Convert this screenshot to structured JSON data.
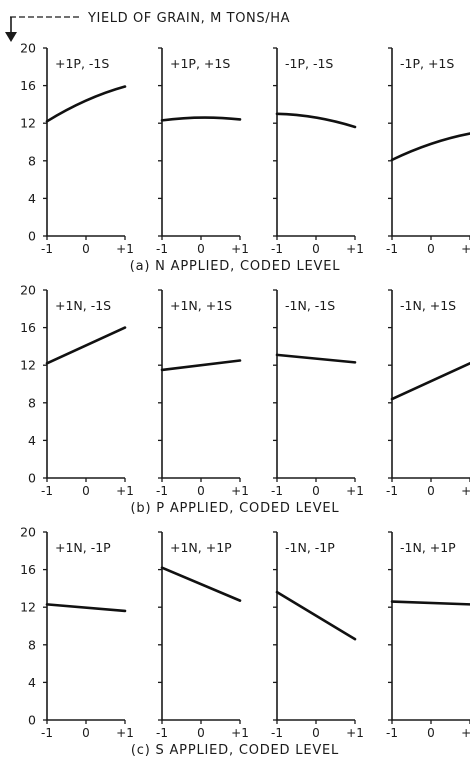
{
  "figure": {
    "ylabel": "YIELD OF GRAIN, M TONS/HA"
  },
  "chart_data": [
    {
      "type": "line",
      "xlabel": "(a) N APPLIED, CODED LEVEL",
      "ylabel": "YIELD OF GRAIN, M TONS/HA",
      "ylim": [
        0,
        20
      ],
      "y_ticks": [
        "0",
        "4",
        "8",
        "12",
        "16",
        "20"
      ],
      "x_ticks": [
        "-1",
        "0",
        "+1"
      ],
      "panels": [
        {
          "label": "+1P, -1S",
          "x": [
            -1,
            0,
            1
          ],
          "y": [
            12.2,
            14.4,
            15.9
          ]
        },
        {
          "label": "+1P, +1S",
          "x": [
            -1,
            0,
            1
          ],
          "y": [
            12.3,
            12.6,
            12.4
          ]
        },
        {
          "label": "-1P, -1S",
          "x": [
            -1,
            0,
            1
          ],
          "y": [
            13.0,
            12.6,
            11.6
          ]
        },
        {
          "label": "-1P, +1S",
          "x": [
            -1,
            0,
            1
          ],
          "y": [
            8.1,
            9.8,
            10.9
          ]
        }
      ]
    },
    {
      "type": "line",
      "xlabel": "(b) P APPLIED, CODED LEVEL",
      "ylabel": "YIELD OF GRAIN, M TONS/HA",
      "ylim": [
        0,
        20
      ],
      "y_ticks": [
        "0",
        "4",
        "8",
        "12",
        "16",
        "20"
      ],
      "x_ticks": [
        "-1",
        "0",
        "+1"
      ],
      "panels": [
        {
          "label": "+1N, -1S",
          "x": [
            -1,
            1
          ],
          "y": [
            12.2,
            16.0
          ]
        },
        {
          "label": "+1N, +1S",
          "x": [
            -1,
            1
          ],
          "y": [
            11.5,
            12.5
          ]
        },
        {
          "label": "-1N, -1S",
          "x": [
            -1,
            1
          ],
          "y": [
            13.1,
            12.3
          ]
        },
        {
          "label": "-1N, +1S",
          "x": [
            -1,
            1
          ],
          "y": [
            8.4,
            12.2
          ]
        }
      ]
    },
    {
      "type": "line",
      "xlabel": "(c) S APPLIED, CODED LEVEL",
      "ylabel": "YIELD OF GRAIN, M TONS/HA",
      "ylim": [
        0,
        20
      ],
      "y_ticks": [
        "0",
        "4",
        "8",
        "12",
        "16",
        "20"
      ],
      "x_ticks": [
        "-1",
        "0",
        "+1"
      ],
      "panels": [
        {
          "label": "+1N, -1P",
          "x": [
            -1,
            1
          ],
          "y": [
            12.3,
            11.6
          ]
        },
        {
          "label": "+1N, +1P",
          "x": [
            -1,
            1
          ],
          "y": [
            16.2,
            12.7
          ]
        },
        {
          "label": "-1N, -1P",
          "x": [
            -1,
            1
          ],
          "y": [
            13.6,
            8.6
          ]
        },
        {
          "label": "-1N, +1P",
          "x": [
            -1,
            1
          ],
          "y": [
            12.6,
            12.3
          ]
        }
      ]
    }
  ]
}
